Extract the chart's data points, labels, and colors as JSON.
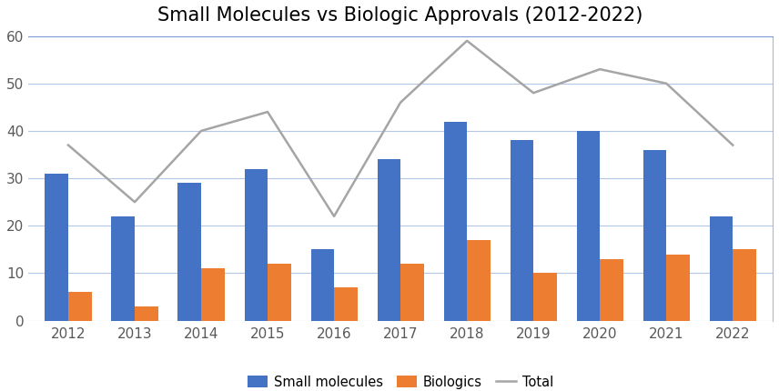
{
  "title": "Small Molecules vs Biologic Approvals (2012-2022)",
  "years": [
    2012,
    2013,
    2014,
    2015,
    2016,
    2017,
    2018,
    2019,
    2020,
    2021,
    2022
  ],
  "small_molecules": [
    31,
    22,
    29,
    32,
    15,
    34,
    42,
    38,
    40,
    36,
    22
  ],
  "biologics": [
    6,
    3,
    11,
    12,
    7,
    12,
    17,
    10,
    13,
    14,
    15
  ],
  "total": [
    37,
    25,
    40,
    44,
    22,
    46,
    59,
    48,
    53,
    50,
    37
  ],
  "bar_color_sm": "#4472C4",
  "bar_color_bio": "#ED7D31",
  "line_color_total": "#A5A5A5",
  "background_color": "#FFFFFF",
  "grid_color": "#4472C4",
  "grid_alpha": 0.4,
  "spine_color": "#4472C4",
  "ylim": [
    0,
    60
  ],
  "yticks": [
    0,
    10,
    20,
    30,
    40,
    50,
    60
  ],
  "title_fontsize": 15,
  "tick_fontsize": 11,
  "legend_labels": [
    "Small molecules",
    "Biologics",
    "Total"
  ],
  "bar_width": 0.35
}
